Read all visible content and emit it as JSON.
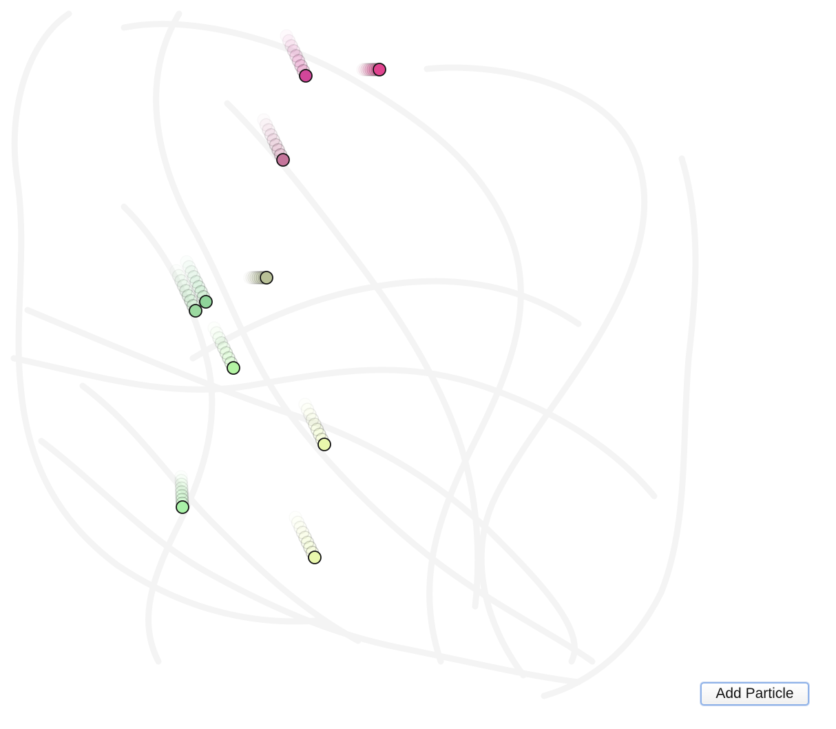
{
  "controls": {
    "add_particle_label": "Add Particle"
  },
  "particles": [
    {
      "color": "#e0448f",
      "trail": "short-horizontal"
    },
    {
      "color": "#d2469a",
      "trail": "diagonal"
    },
    {
      "color": "#c5759b",
      "trail": "diagonal"
    },
    {
      "color": "#b9c197",
      "trail": "short-horizontal"
    },
    {
      "color": "#8fd49a",
      "trail": "diagonal"
    },
    {
      "color": "#9bd9a0",
      "trail": "diagonal"
    },
    {
      "color": "#b3f3a3",
      "trail": "diagonal"
    },
    {
      "color": "#e9f8ac",
      "trail": "diagonal"
    },
    {
      "color": "#a9f2a8",
      "trail": "vertical"
    },
    {
      "color": "#eaf8ad",
      "trail": "diagonal"
    }
  ]
}
